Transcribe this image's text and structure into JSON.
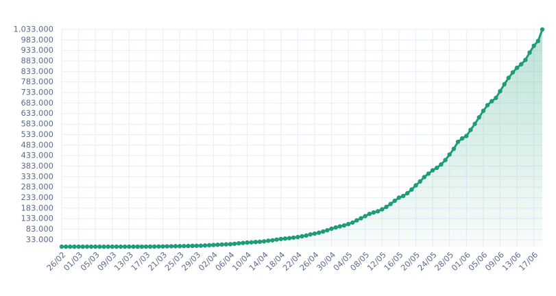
{
  "chart_data": {
    "type": "line",
    "color": "#1f9c76",
    "grid": true,
    "categories": [
      "26/02",
      null,
      null,
      null,
      "01/03",
      null,
      null,
      null,
      "05/03",
      null,
      null,
      null,
      "09/03",
      null,
      null,
      null,
      "13/03",
      null,
      null,
      null,
      "17/03",
      null,
      null,
      null,
      "21/03",
      null,
      null,
      null,
      "25/03",
      null,
      null,
      null,
      "29/03",
      null,
      null,
      null,
      "02/04",
      null,
      null,
      null,
      "06/04",
      null,
      null,
      null,
      "10/04",
      null,
      null,
      null,
      "14/04",
      null,
      null,
      null,
      "18/04",
      null,
      null,
      null,
      "22/04",
      null,
      null,
      null,
      "26/04",
      null,
      null,
      null,
      "30/04",
      null,
      null,
      null,
      "04/05",
      null,
      null,
      null,
      "08/05",
      null,
      null,
      null,
      "12/05",
      null,
      null,
      null,
      "16/05",
      null,
      null,
      null,
      "20/05",
      null,
      null,
      null,
      "24/05",
      null,
      null,
      null,
      "28/05",
      null,
      null,
      null,
      "01/06",
      null,
      null,
      null,
      "05/06",
      null,
      null,
      null,
      "09/06",
      null,
      null,
      null,
      "13/06",
      null,
      null,
      null,
      "17/06",
      null,
      null
    ],
    "values": [
      1,
      1,
      1,
      1,
      2,
      2,
      2,
      3,
      8,
      13,
      19,
      25,
      25,
      34,
      52,
      77,
      98,
      121,
      200,
      234,
      291,
      428,
      621,
      904,
      1128,
      1546,
      1891,
      2201,
      2433,
      2915,
      3417,
      3904,
      4256,
      4579,
      5717,
      6836,
      7910,
      9056,
      10278,
      11130,
      12056,
      13717,
      15927,
      17857,
      19638,
      20727,
      22169,
      23430,
      25262,
      28320,
      30425,
      33682,
      36599,
      38654,
      40581,
      43079,
      45757,
      49492,
      52995,
      58509,
      61888,
      66501,
      71886,
      78162,
      85380,
      91589,
      96396,
      101147,
      107780,
      114715,
      125218,
      135106,
      145328,
      155939,
      162699,
      168331,
      177589,
      188974,
      202918,
      218223,
      233142,
      241080,
      254220,
      271628,
      291579,
      310087,
      330890,
      347398,
      363211,
      374898,
      391222,
      411821,
      438238,
      465166,
      498440,
      514849,
      526447,
      555383,
      584016,
      614941,
      645771,
      672846,
      691758,
      707412,
      739503,
      772416,
      802828,
      828810,
      850514,
      867624,
      888271,
      923189,
      955377,
      978142,
      1032913
    ],
    "ylim": [
      0,
      1033000
    ],
    "yticks": [
      {
        "value": 33000,
        "label": "33.000"
      },
      {
        "value": 83000,
        "label": "83.000"
      },
      {
        "value": 133000,
        "label": "133.000"
      },
      {
        "value": 183000,
        "label": "183.000"
      },
      {
        "value": 233000,
        "label": "233.000"
      },
      {
        "value": 283000,
        "label": "283.000"
      },
      {
        "value": 333000,
        "label": "333.000"
      },
      {
        "value": 383000,
        "label": "383.000"
      },
      {
        "value": 433000,
        "label": "433.000"
      },
      {
        "value": 483000,
        "label": "483.000"
      },
      {
        "value": 533000,
        "label": "533.000"
      },
      {
        "value": 583000,
        "label": "583.000"
      },
      {
        "value": 633000,
        "label": "633.000"
      },
      {
        "value": 683000,
        "label": "683.000"
      },
      {
        "value": 733000,
        "label": "733.000"
      },
      {
        "value": 783000,
        "label": "783.000"
      },
      {
        "value": 833000,
        "label": "833.000"
      },
      {
        "value": 883000,
        "label": "883.000"
      },
      {
        "value": 933000,
        "label": "933.000"
      },
      {
        "value": 983000,
        "label": "983.000"
      },
      {
        "value": 1033000,
        "label": "1.033.000"
      }
    ]
  }
}
